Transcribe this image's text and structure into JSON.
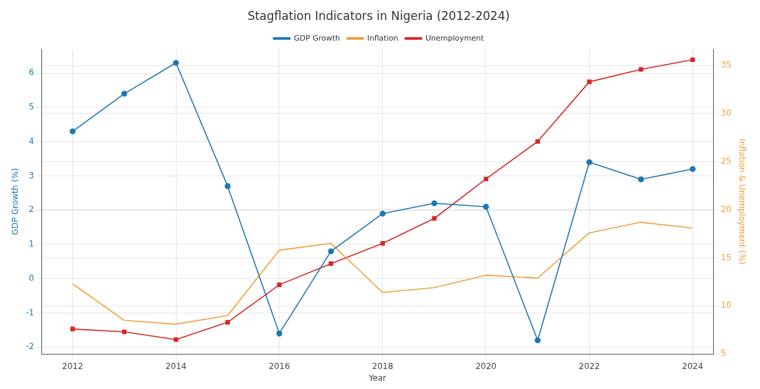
{
  "chart_data": {
    "type": "line",
    "title": "Stagflation Indicators in Nigeria (2012-2024)",
    "xlabel": "Year",
    "ylabel": "GDP Growth (%)",
    "y2label": "Inflation & Unemployment (%)",
    "x": [
      2012,
      2013,
      2014,
      2015,
      2016,
      2017,
      2018,
      2019,
      2020,
      2021,
      2022,
      2023,
      2024
    ],
    "series": [
      {
        "name": "GDP Growth",
        "color": "#1f77b4",
        "marker": "circle",
        "values": [
          4.3,
          5.4,
          6.3,
          2.7,
          -1.6,
          0.8,
          1.9,
          2.2,
          2.1,
          -1.8,
          3.4,
          2.9,
          3.2
        ]
      },
      {
        "name": "Inflation",
        "color": "#f0a040",
        "marker": "none",
        "axis": "y2",
        "values": [
          12.3,
          8.5,
          8.1,
          9.0,
          15.8,
          16.5,
          11.4,
          11.9,
          13.2,
          12.9,
          17.6,
          18.7,
          18.1
        ]
      },
      {
        "name": "Unemployment",
        "color": "#d62728",
        "marker": "square",
        "axis": "y2",
        "values": [
          7.6,
          7.3,
          6.5,
          8.3,
          12.2,
          14.4,
          16.5,
          19.1,
          23.2,
          27.1,
          33.3,
          34.6,
          35.6
        ]
      }
    ],
    "xlim": [
      2011.4,
      2024.4
    ],
    "xticks": [
      2012,
      2014,
      2016,
      2018,
      2020,
      2022,
      2024
    ],
    "ylim": [
      -2.2,
      6.7
    ],
    "yticks": [
      -2,
      -1,
      0,
      1,
      2,
      3,
      4,
      5,
      6
    ],
    "y2lim": [
      5,
      36.7
    ],
    "y2ticks": [
      5,
      10,
      15,
      20,
      25,
      30,
      35
    ],
    "grid": true,
    "legend": "top",
    "line_style": "solid"
  }
}
